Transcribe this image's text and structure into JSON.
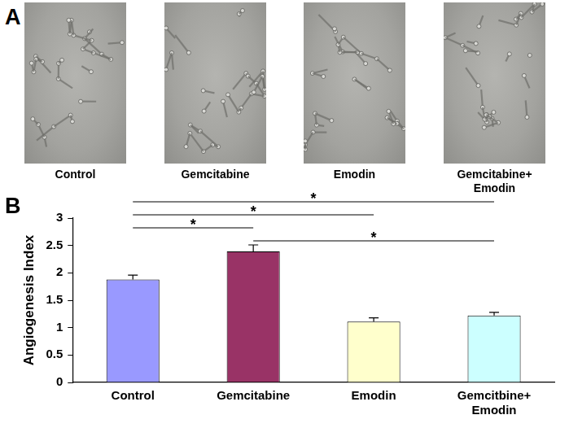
{
  "panel_labels": [
    "A",
    "B"
  ],
  "images": {
    "captions": [
      "Control",
      "Gemcitabine",
      "Emodin",
      "Gemcitabine+ Emodin"
    ]
  },
  "chart_data": {
    "type": "bar",
    "y_label": "Angiogenesis Index",
    "categories": [
      "Control",
      "Gemcitabine",
      "Emodin",
      "Gemcitbine+ Emodin"
    ],
    "values": [
      1.88,
      2.39,
      1.11,
      1.22
    ],
    "errors": [
      0.08,
      0.12,
      0.07,
      0.06
    ],
    "colors": [
      "#9999ff",
      "#993366",
      "#ffffcc",
      "#ccffff"
    ],
    "ylim": [
      0,
      3
    ],
    "yticks": [
      0,
      0.5,
      1,
      1.5,
      2,
      2.5,
      3
    ],
    "grid": false,
    "annotations": [
      {
        "from": 1,
        "to": 3,
        "text": "*"
      },
      {
        "from": 0,
        "to": 1,
        "text": "*"
      },
      {
        "from": 0,
        "to": 2,
        "text": "*"
      },
      {
        "from": 0,
        "to": 3,
        "text": "*"
      }
    ]
  }
}
